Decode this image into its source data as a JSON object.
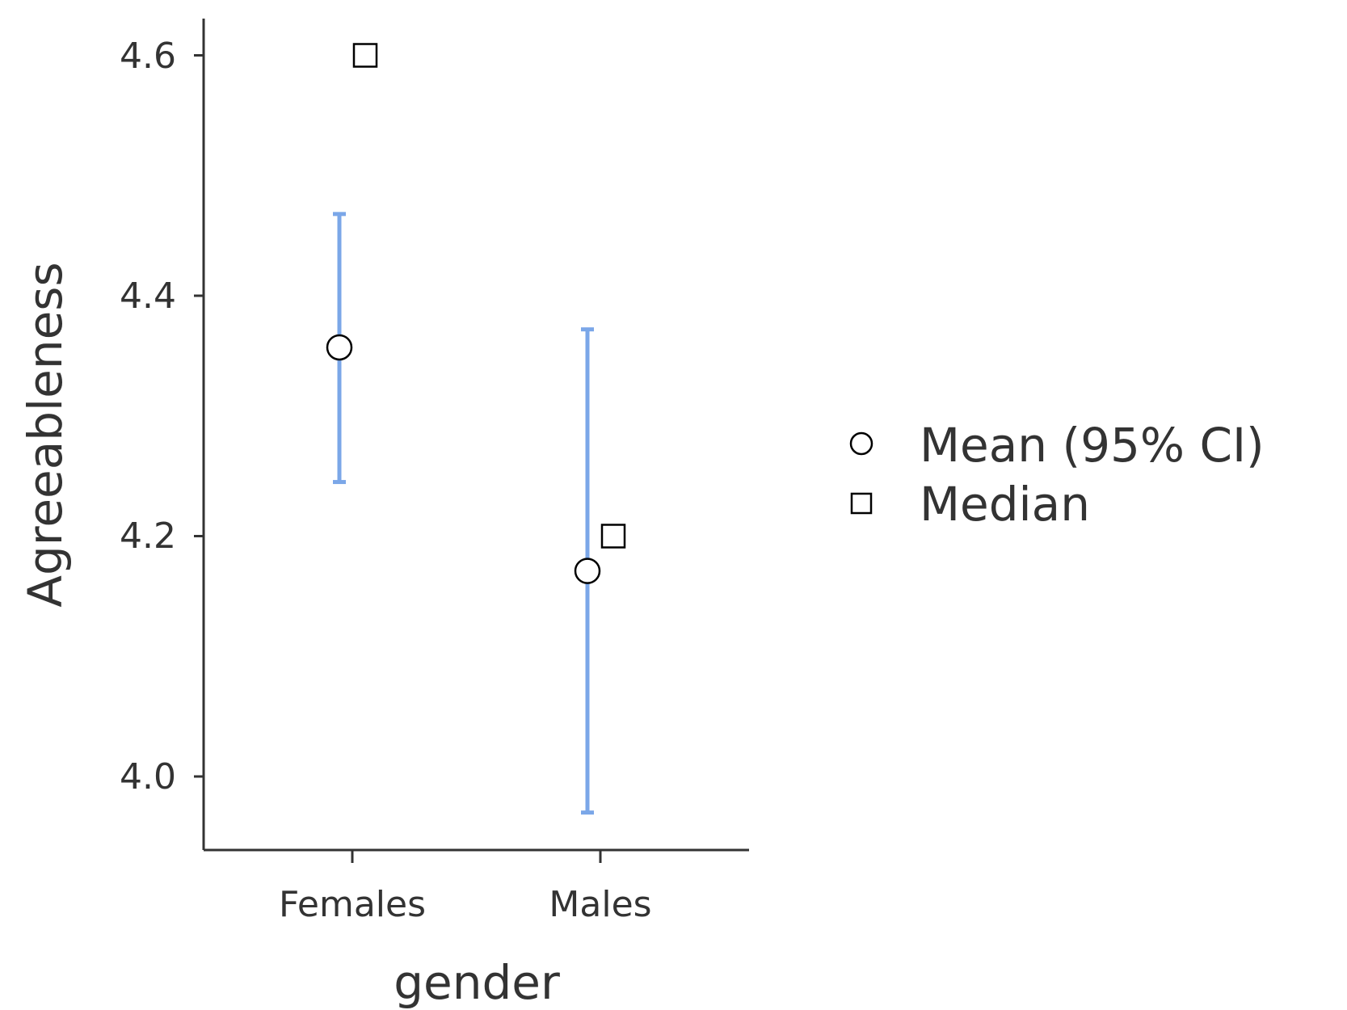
{
  "chart_data": {
    "type": "scatter",
    "title": "",
    "xlabel": "gender",
    "ylabel": "Agreeableness",
    "categories": [
      "Females",
      "Males"
    ],
    "ylim": [
      3.94,
      4.63
    ],
    "yticks": [
      "4.0",
      "4.2",
      "4.4",
      "4.6"
    ],
    "grid": false,
    "legend_position": "right",
    "series": [
      {
        "name": "Mean (95% CI)",
        "marker": "circle",
        "values": [
          4.357,
          4.171
        ],
        "ci_lower": [
          4.245,
          3.97
        ],
        "ci_upper": [
          4.468,
          4.372
        ]
      },
      {
        "name": "Median",
        "marker": "square",
        "values": [
          4.6,
          4.2
        ]
      }
    ],
    "colors": {
      "error_bar": "#7ba7e8",
      "marker_fill": "#ffffff",
      "marker_stroke": "#000000",
      "axis": "#333333",
      "text": "#333333"
    }
  }
}
